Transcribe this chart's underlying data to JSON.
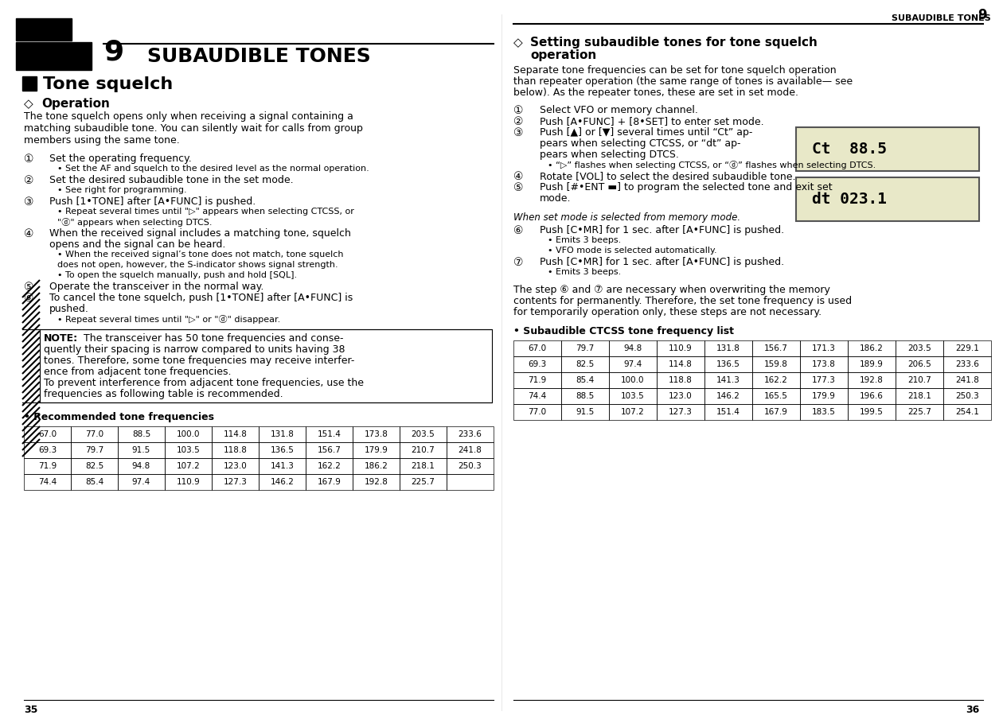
{
  "bg_color": "#ffffff",
  "left_page": {
    "page_num": "35",
    "chapter_num": "9",
    "chapter_title": "SUBAUDIBLE TONES",
    "section_title": "Tone squelch",
    "subsection": "Operation",
    "body_lines": [
      "The tone squelch opens only when receiving a signal containing a",
      "matching subaudible tone. You can silently wait for calls from group",
      "members using the same tone."
    ],
    "steps": [
      {
        "num": "①",
        "text": "Set the operating frequency.",
        "bold": false,
        "bullets": [
          "• Set the AF and squelch to the desired level as the normal operation."
        ]
      },
      {
        "num": "②",
        "text": "Set the desired subaudible tone in the set mode.",
        "bold": false,
        "bullets": [
          "• See right for programming."
        ]
      },
      {
        "num": "③",
        "text": "Push [1•TONE] after [A•FUNC] is pushed.",
        "bold": false,
        "bullets": [
          "• Repeat several times until \"▷\" appears when selecting CTCSS, or",
          "\"ⓓ\" appears when selecting DTCS."
        ]
      },
      {
        "num": "④",
        "text": "When the received signal includes a matching tone, squelch",
        "text2": "opens and the signal can be heard.",
        "bold": false,
        "bullets": [
          "• When the received signal’s tone does not match, tone squelch",
          "does not open, however, the S-indicator shows signal strength.",
          "• To open the squelch manually, push and hold [SQL]."
        ]
      },
      {
        "num": "⑤",
        "text": "Operate the transceiver in the normal way.",
        "bold": false
      },
      {
        "num": "⑥",
        "text": "To cancel the tone squelch, push [1•TONE] after [A•FUNC] is",
        "text2": "pushed.",
        "bold": false,
        "bullets": [
          "• Repeat several times until \"▷\" or \"ⓓ\" disappear."
        ]
      }
    ],
    "note_lines": [
      "NOTE:  The transceiver has 50 tone frequencies and conse-",
      "quently their spacing is narrow compared to units having 38",
      "tones. Therefore, some tone frequencies may receive interfer-",
      "ence from adjacent tone frequencies.",
      "To prevent interference from adjacent tone frequencies, use the",
      "frequencies as following table is recommended."
    ],
    "rec_table_title": "Recommended tone frequencies",
    "rec_table": [
      [
        "67.0",
        "77.0",
        "88.5",
        "100.0",
        "114.8",
        "131.8",
        "151.4",
        "173.8",
        "203.5",
        "233.6"
      ],
      [
        "69.3",
        "79.7",
        "91.5",
        "103.5",
        "118.8",
        "136.5",
        "156.7",
        "179.9",
        "210.7",
        "241.8"
      ],
      [
        "71.9",
        "82.5",
        "94.8",
        "107.2",
        "123.0",
        "141.3",
        "162.2",
        "186.2",
        "218.1",
        "250.3"
      ],
      [
        "74.4",
        "85.4",
        "97.4",
        "110.9",
        "127.3",
        "146.2",
        "167.9",
        "192.8",
        "225.7",
        ""
      ]
    ]
  },
  "right_page": {
    "page_num": "36",
    "header_text": "SUBAUDIBLE TONES",
    "header_num": "9",
    "section_title": "Setting subaudible tones for tone squelch\noperation",
    "intro_lines": [
      "Separate tone frequencies can be set for tone squelch operation",
      "than repeater operation (the same range of tones is available— see",
      "below). As the repeater tones, these are set in set mode."
    ],
    "steps": [
      {
        "num": "①",
        "text": "Select VFO or memory channel."
      },
      {
        "num": "②",
        "text": "Push [A•FUNC] + [8•SET] to enter set mode."
      },
      {
        "num": "③",
        "text": "Push [▲] or [▼] several times until “Ct” ap-",
        "text2": "pears when selecting CTCSS, or “dt” ap-",
        "text3": "pears when selecting DTCS.",
        "bullets": [
          "• “▷” flashes when selecting CTCSS, or “ⓓ” flashes when selecting DTCS."
        ]
      },
      {
        "num": "④",
        "text": "Rotate [VOL] to select the desired subaudible tone."
      },
      {
        "num": "⑤",
        "text": "Push [#•ENT ▬] to program the selected tone and exit set",
        "text2": "mode."
      }
    ],
    "memory_mode_note": "When set mode is selected from memory mode.",
    "steps2": [
      {
        "num": "⑥",
        "text": "Push [C•MR] for 1 sec. after [A•FUNC] is pushed.",
        "bullets": [
          "• Emits 3 beeps.",
          "• VFO mode is selected automatically."
        ]
      },
      {
        "num": "⑦",
        "text": "Push [C•MR] for 1 sec. after [A•FUNC] is pushed.",
        "bullets": [
          "• Emits 3 beeps."
        ]
      }
    ],
    "closing_text": "The step ⑥ and ⑦ are necessary when overwriting the memory\ncontents for permanently. Therefore, the set tone frequency is used\nfor temporarily operation only, these steps are not necessary.",
    "ctcss_table_title": "Subaudible CTCSS tone frequency list",
    "ctcss_table": [
      [
        "67.0",
        "79.7",
        "94.8",
        "110.9",
        "131.8",
        "156.7",
        "171.3",
        "186.2",
        "203.5",
        "229.1"
      ],
      [
        "69.3",
        "82.5",
        "97.4",
        "114.8",
        "136.5",
        "159.8",
        "173.8",
        "189.9",
        "206.5",
        "233.6"
      ],
      [
        "71.9",
        "85.4",
        "100.0",
        "118.8",
        "141.3",
        "162.2",
        "177.3",
        "192.8",
        "210.7",
        "241.8"
      ],
      [
        "74.4",
        "88.5",
        "103.5",
        "123.0",
        "146.2",
        "165.5",
        "179.9",
        "196.6",
        "218.1",
        "250.3"
      ],
      [
        "77.0",
        "91.5",
        "107.2",
        "127.3",
        "151.4",
        "167.9",
        "183.5",
        "199.5",
        "225.7",
        "254.1"
      ]
    ]
  }
}
